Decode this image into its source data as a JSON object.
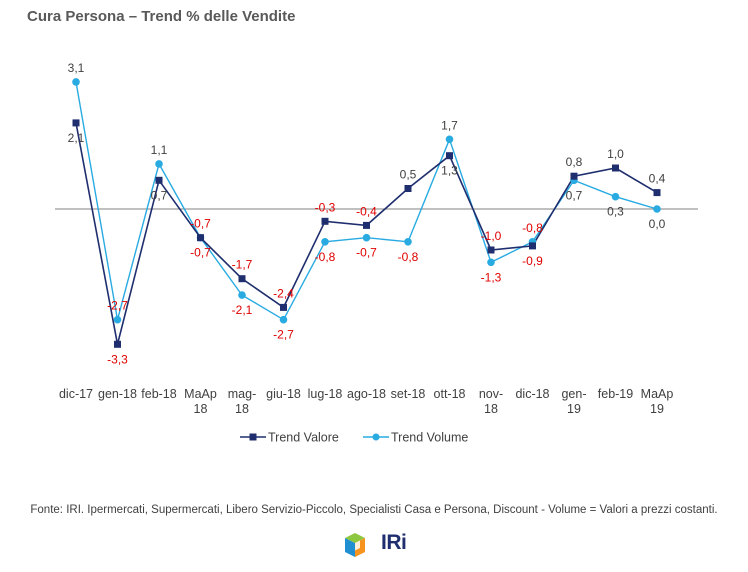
{
  "chart_data": {
    "type": "line",
    "title": "Cura Persona –  Trend % delle Vendite",
    "categories": [
      [
        "dic-17"
      ],
      [
        "gen-18"
      ],
      [
        "feb-18"
      ],
      [
        "MaAp",
        "18"
      ],
      [
        "mag-",
        "18"
      ],
      [
        "giu-18"
      ],
      [
        "lug-18"
      ],
      [
        "ago-18"
      ],
      [
        "set-18"
      ],
      [
        "ott-18"
      ],
      [
        "nov-",
        "18"
      ],
      [
        "dic-18"
      ],
      [
        "gen-",
        "19"
      ],
      [
        "feb-19"
      ],
      [
        "MaAp",
        "19"
      ]
    ],
    "series": [
      {
        "name": "Trend Valore",
        "color": "#1f2e6e",
        "marker": "square",
        "values": [
          2.1,
          -3.3,
          0.7,
          -0.7,
          -1.7,
          -2.4,
          -0.3,
          -0.4,
          0.5,
          1.3,
          -1.0,
          -0.9,
          0.8,
          1.0,
          0.4
        ],
        "labels": [
          "2,1",
          "-3,3",
          "0,7",
          "-0,7",
          "-1,7",
          "-2,4",
          "-0,3",
          "-0,4",
          "0,5",
          "1,3",
          "-1,0",
          "-0,9",
          "0,8",
          "1,0",
          "0,4"
        ]
      },
      {
        "name": "Trend Volume",
        "color": "#29abe2",
        "marker": "circle",
        "values": [
          3.1,
          -2.7,
          1.1,
          -0.7,
          -2.1,
          -2.7,
          -0.8,
          -0.7,
          -0.8,
          1.7,
          -1.3,
          -0.8,
          0.7,
          0.3,
          0.0
        ],
        "labels": [
          "3,1",
          "-2,7",
          "1,1",
          "-0,7",
          "-2,1",
          "-2,7",
          "-0,8",
          "-0,7",
          "-0,8",
          "1,7",
          "-1,3",
          "-0,8",
          "0,7",
          "0,3",
          "0,0"
        ]
      }
    ],
    "negative_label_color": "#e00000",
    "positive_label_color": "#404040",
    "legend_position": "bottom-center",
    "grid": false
  },
  "footer": {
    "source": "Fonte: IRI. Ipermercati, Supermercati, Libero Servizio-Piccolo,  Specialisti Casa e Persona, Discount -  Volume =  Valori a prezzi  costanti.",
    "logo_text": "IRi"
  }
}
